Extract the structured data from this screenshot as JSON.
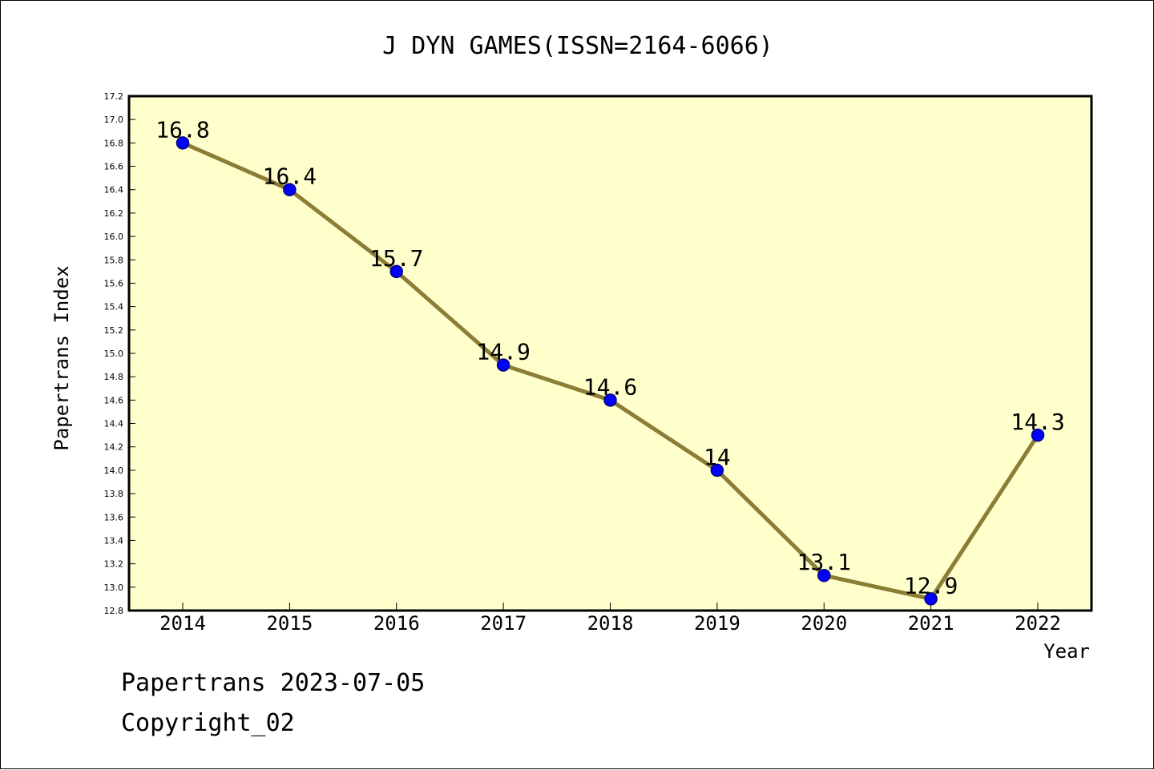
{
  "chart_data": {
    "type": "line",
    "title": "J DYN GAMES(ISSN=2164-6066)",
    "xlabel": "Year",
    "ylabel": "Papertrans Index",
    "categories": [
      "2014",
      "2015",
      "2016",
      "2017",
      "2018",
      "2019",
      "2020",
      "2021",
      "2022"
    ],
    "series": [
      {
        "values": [
          16.8,
          16.4,
          15.7,
          14.9,
          14.6,
          14.0,
          13.1,
          12.9,
          14.3
        ],
        "labels": [
          "16.8",
          "16.4",
          "15.7",
          "14.9",
          "14.6",
          "14",
          "13.1",
          "12.9",
          "14.3"
        ]
      }
    ],
    "ylim": [
      12.8,
      17.2
    ],
    "ytick_step": 0.2,
    "grid": false,
    "legend": "none",
    "colors": {
      "plot_background": "#ffffcc",
      "line": "#8b7d35",
      "marker": "#0000ff",
      "marker_edge": "#000080",
      "axis": "#000000"
    }
  },
  "footer": {
    "date_line": "Papertrans 2023-07-05",
    "copyright_line": "Copyright_02"
  }
}
